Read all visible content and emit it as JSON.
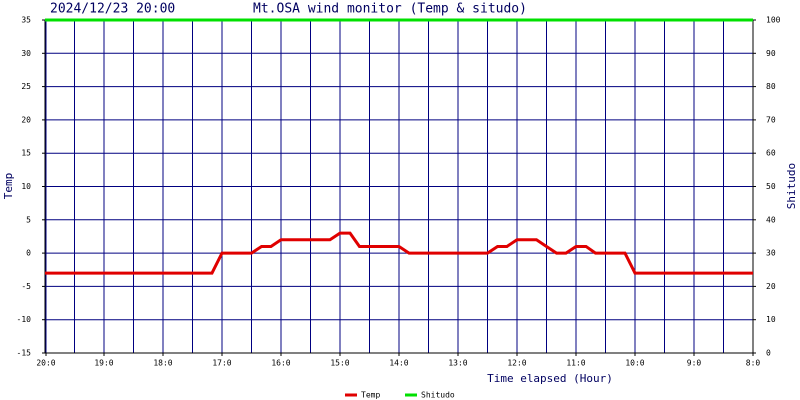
{
  "chart_data": {
    "type": "line",
    "subtitle": "2024/12/23 20:00",
    "title": "Mt.OSA wind monitor (Temp & situdo)",
    "xlabel": "Time elapsed (Hour)",
    "ylabel": "Temp",
    "y2label": "Shitudo",
    "xlim": [
      0,
      12
    ],
    "xticks": [
      {
        "value": 0,
        "label": "20:0"
      },
      {
        "value": 1,
        "label": "19:0"
      },
      {
        "value": 2,
        "label": "18:0"
      },
      {
        "value": 3,
        "label": "17:0"
      },
      {
        "value": 4,
        "label": "16:0"
      },
      {
        "value": 5,
        "label": "15:0"
      },
      {
        "value": 6,
        "label": "14:0"
      },
      {
        "value": 7,
        "label": "13:0"
      },
      {
        "value": 8,
        "label": "12:0"
      },
      {
        "value": 9,
        "label": "11:0"
      },
      {
        "value": 10,
        "label": "10:0"
      },
      {
        "value": 11,
        "label": "9:0"
      },
      {
        "value": 12,
        "label": "8:0"
      }
    ],
    "xminor": [
      0.5,
      1.5,
      2.5,
      3.5,
      4.5,
      5.5,
      6.5,
      7.5,
      8.5,
      9.5,
      10.5,
      11.5
    ],
    "ylim": [
      -15,
      35
    ],
    "yticks": [
      -15,
      -10,
      -5,
      0,
      5,
      10,
      15,
      20,
      25,
      30,
      35
    ],
    "y2lim": [
      0,
      100
    ],
    "y2ticks": [
      0,
      10,
      20,
      30,
      40,
      50,
      60,
      70,
      80,
      90,
      100
    ],
    "grid": true,
    "legend": "bottom",
    "series": [
      {
        "name": "Temp",
        "color": "#e00000",
        "x": [
          0,
          2.83,
          3.0,
          3.5,
          3.67,
          3.83,
          4.0,
          4.83,
          5.0,
          5.17,
          5.33,
          6.0,
          6.17,
          7.5,
          7.67,
          7.83,
          8.0,
          8.33,
          8.5,
          8.67,
          8.83,
          9.0,
          9.17,
          9.33,
          9.83,
          10.0,
          12
        ],
        "values": [
          -3,
          -3,
          0,
          0,
          1,
          1,
          2,
          2,
          3,
          3,
          1,
          1,
          0,
          0,
          1,
          1,
          2,
          2,
          1,
          0,
          0,
          1,
          1,
          0,
          0,
          -3,
          -3
        ]
      },
      {
        "name": "Shitudo",
        "color": "#00e000",
        "axis": "y2",
        "x": [
          0,
          12
        ],
        "values": [
          100,
          100
        ]
      }
    ]
  }
}
